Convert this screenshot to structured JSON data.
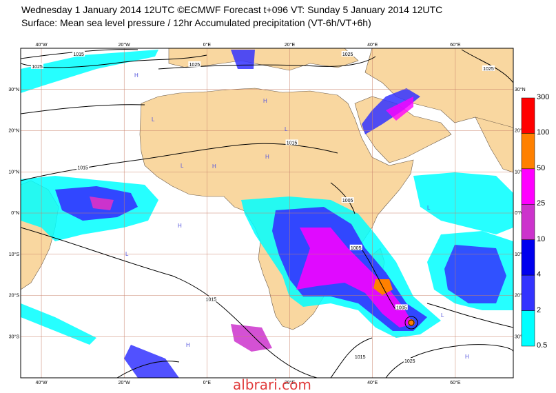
{
  "title": {
    "line1": "Wednesday 1 January 2014 12UTC ©ECMWF Forecast t+096 VT: Sunday 5 January 2014 12UTC",
    "line2": "Surface: Mean sea level pressure / 12hr Accumulated precipitation (VT-6h/VT+6h)"
  },
  "lon_ticks": [
    {
      "label": "40°W",
      "lon": -40
    },
    {
      "label": "20°W",
      "lon": -20
    },
    {
      "label": "0°E",
      "lon": 0
    },
    {
      "label": "20°E",
      "lon": 20
    },
    {
      "label": "40°E",
      "lon": 40
    },
    {
      "label": "60°E",
      "lon": 60
    }
  ],
  "lat_ticks": [
    {
      "label": "30°N",
      "lat": 30
    },
    {
      "label": "20°N",
      "lat": 20
    },
    {
      "label": "10°N",
      "lat": 10
    },
    {
      "label": "0°N",
      "lat": 0
    },
    {
      "label": "10°S",
      "lat": -10
    },
    {
      "label": "20°S",
      "lat": -20
    },
    {
      "label": "30°S",
      "lat": -30
    }
  ],
  "extent": {
    "lon_min": -45,
    "lon_max": 74,
    "lat_min": -40,
    "lat_max": 40
  },
  "colorbar": {
    "labels": [
      "300",
      "100",
      "50",
      "25",
      "10",
      "4",
      "2",
      "0.5"
    ],
    "colors": [
      "#ff0000",
      "#ff8000",
      "#ff00ff",
      "#cc33cc",
      "#0000ee",
      "#3333ff",
      "#00ffff",
      "#00ffff"
    ]
  },
  "isobars": [
    {
      "label": "1015",
      "lon": -31,
      "lat": 38.5
    },
    {
      "label": "1025",
      "lon": -41,
      "lat": 35.5
    },
    {
      "label": "1025",
      "lon": -3,
      "lat": 36
    },
    {
      "label": "1015",
      "lon": -30,
      "lat": 11
    },
    {
      "label": "1015",
      "lon": 20.5,
      "lat": 17
    },
    {
      "label": "1025",
      "lon": 34,
      "lat": 38.5
    },
    {
      "label": "1025",
      "lon": 68,
      "lat": 35
    },
    {
      "label": "1005",
      "lon": 34,
      "lat": 3
    },
    {
      "label": "1005",
      "lon": 36,
      "lat": -8.5
    },
    {
      "label": "1015",
      "lon": 1,
      "lat": -21
    },
    {
      "label": "1015",
      "lon": 37,
      "lat": -35
    },
    {
      "label": "1025",
      "lon": 49,
      "lat": -36
    },
    {
      "label": "1005",
      "lon": 47,
      "lat": -23
    }
  ],
  "pressure_marks": [
    "H",
    "L",
    "H",
    "L",
    "H",
    "L",
    "H",
    "L",
    "H",
    "L",
    "H",
    "L",
    "H"
  ],
  "watermark": "albrari.com",
  "colors": {
    "land": "#f9d7a0",
    "ocean": "#ffffff",
    "grid": "#c8806a",
    "isobar": "#000000"
  }
}
